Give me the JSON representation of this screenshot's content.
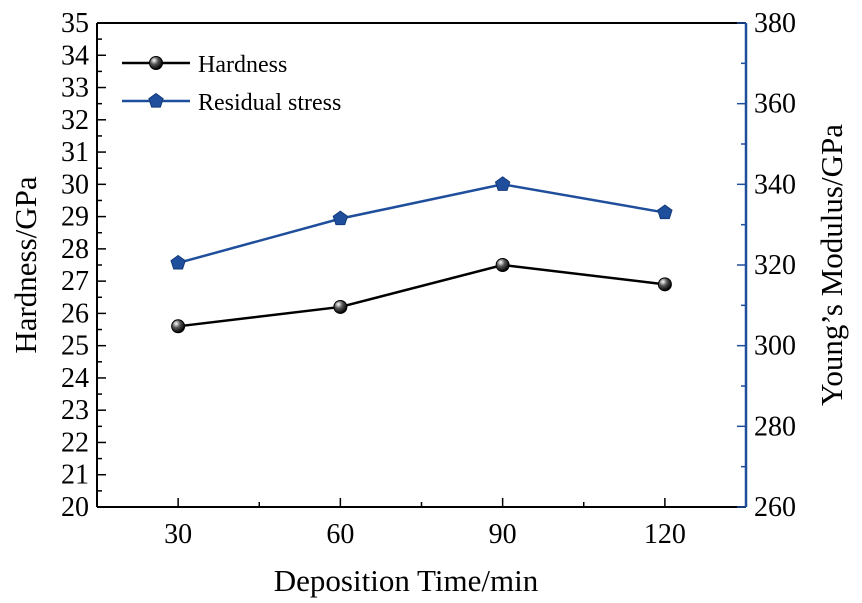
{
  "chart_data": {
    "type": "line",
    "x": [
      30,
      60,
      90,
      120
    ],
    "xticks": [
      "30",
      "60",
      "90",
      "120"
    ],
    "xlabel": "Deposition Time/min",
    "xlim": [
      15,
      135
    ],
    "y_left": {
      "label": "Hardness/GPa",
      "lim": [
        20,
        35
      ],
      "ticks": [
        "20",
        "21",
        "22",
        "23",
        "24",
        "25",
        "26",
        "27",
        "28",
        "29",
        "30",
        "31",
        "32",
        "33",
        "34",
        "35"
      ],
      "color": "#000000"
    },
    "y_right": {
      "label": "Young’s Modulus/GPa",
      "lim": [
        260,
        380
      ],
      "ticks": [
        "260",
        "280",
        "300",
        "320",
        "340",
        "360",
        "380"
      ],
      "color": "#1f4e9c"
    },
    "series": [
      {
        "name": "Hardness",
        "axis": "left",
        "values": [
          25.6,
          26.2,
          27.5,
          26.9
        ],
        "color": "#000000",
        "marker": "sphere"
      },
      {
        "name": "Residual stress",
        "axis": "right",
        "values": [
          320.5,
          331.5,
          340.0,
          333.0
        ],
        "color": "#1f4e9c",
        "marker": "pentagon"
      }
    ],
    "legend_position": "top-left",
    "grid": false
  }
}
